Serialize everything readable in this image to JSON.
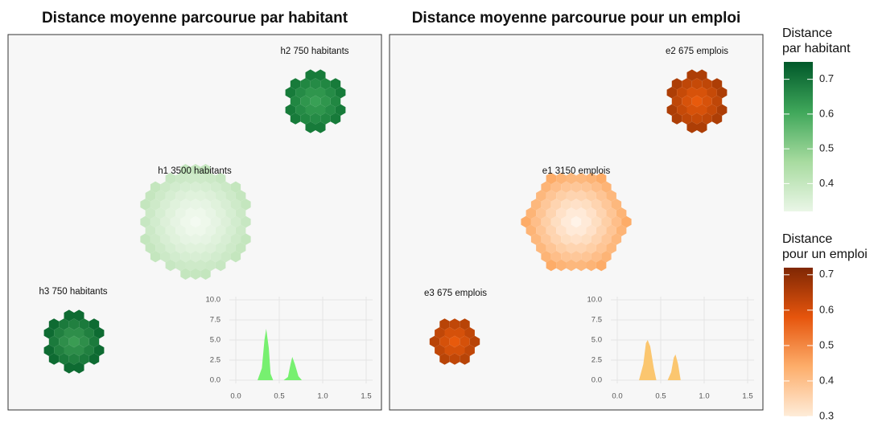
{
  "chart_data": [
    {
      "type": "hexmap",
      "title": "Distance moyenne parcourue par habitant",
      "clusters": [
        {
          "label": "h2 750 habitants",
          "color": "#38a055",
          "edge_color": "#137737"
        },
        {
          "label": "h1 3500 habitants",
          "color": "#f3faf1",
          "edge_color": "#c4e6be"
        },
        {
          "label": "h3 750 habitants",
          "color": "#3a9c53",
          "edge_color": "#0e6b32"
        }
      ]
    },
    {
      "type": "area",
      "color": "#77f070",
      "x": [
        0.25,
        0.3,
        0.33,
        0.35,
        0.38,
        0.4,
        0.43,
        0.55,
        0.6,
        0.63,
        0.65,
        0.68,
        0.72,
        0.76
      ],
      "values": [
        0,
        1.5,
        5,
        6.4,
        4,
        0.8,
        0,
        0,
        0.4,
        2,
        2.9,
        2,
        0.5,
        0
      ],
      "xlim": [
        0,
        1.5
      ],
      "ylim": [
        0,
        10
      ],
      "xticks": [
        {
          "value": 0,
          "label": "0.0"
        },
        0.5,
        {
          "value": 1,
          "label": "1.0"
        },
        1.5
      ],
      "yticks": [
        {
          "value": 0,
          "label": "0.0"
        },
        2.5,
        {
          "value": 5,
          "label": "5.0"
        },
        7.5,
        {
          "value": 10,
          "label": "10.0"
        }
      ],
      "grid": true
    },
    {
      "type": "hexmap",
      "title": "Distance moyenne parcourue pour un emploi",
      "clusters": [
        {
          "label": "e2 675 emplois",
          "color": "#e85a0c",
          "edge_color": "#a63b05"
        },
        {
          "label": "e1 3150 emplois",
          "color": "#fff3e8",
          "edge_color": "#fdaa64"
        },
        {
          "label": "e3 675 emplois",
          "color": "#e85a0c",
          "edge_color": "#a63b05"
        }
      ]
    },
    {
      "type": "area",
      "color": "#fbc66f",
      "x": [
        0.25,
        0.3,
        0.33,
        0.35,
        0.38,
        0.42,
        0.45,
        0.58,
        0.62,
        0.65,
        0.67,
        0.7,
        0.73
      ],
      "values": [
        0,
        2,
        4.6,
        5,
        4.2,
        1.5,
        0,
        0,
        1,
        2.8,
        3.2,
        2,
        0
      ],
      "xlim": [
        0,
        1.5
      ],
      "ylim": [
        0,
        10
      ],
      "xticks": [
        {
          "value": 0,
          "label": "0.0"
        },
        0.5,
        {
          "value": 1,
          "label": "1.0"
        },
        1.5
      ],
      "yticks": [
        {
          "value": 0,
          "label": "0.0"
        },
        2.5,
        {
          "value": 5,
          "label": "5.0"
        },
        7.5,
        {
          "value": 10,
          "label": "10.0"
        }
      ],
      "grid": true
    },
    {
      "type": "colorbar",
      "title": [
        "Distance",
        "par habitant"
      ],
      "colors": [
        "#eaf6e7",
        "#a7db9f",
        "#3fa75a",
        "#00582a"
      ],
      "ylim": [
        0.32,
        0.75
      ],
      "yticks": [
        0.4,
        0.5,
        0.6,
        0.7
      ]
    },
    {
      "type": "colorbar",
      "title": [
        "Distance",
        "pour un emploi"
      ],
      "colors": [
        "#feecd9",
        "#fdae6b",
        "#e6550d",
        "#7f2704"
      ],
      "ylim": [
        0.3,
        0.72
      ],
      "yticks": [
        0.3,
        0.4,
        0.5,
        0.6,
        0.7
      ]
    }
  ]
}
